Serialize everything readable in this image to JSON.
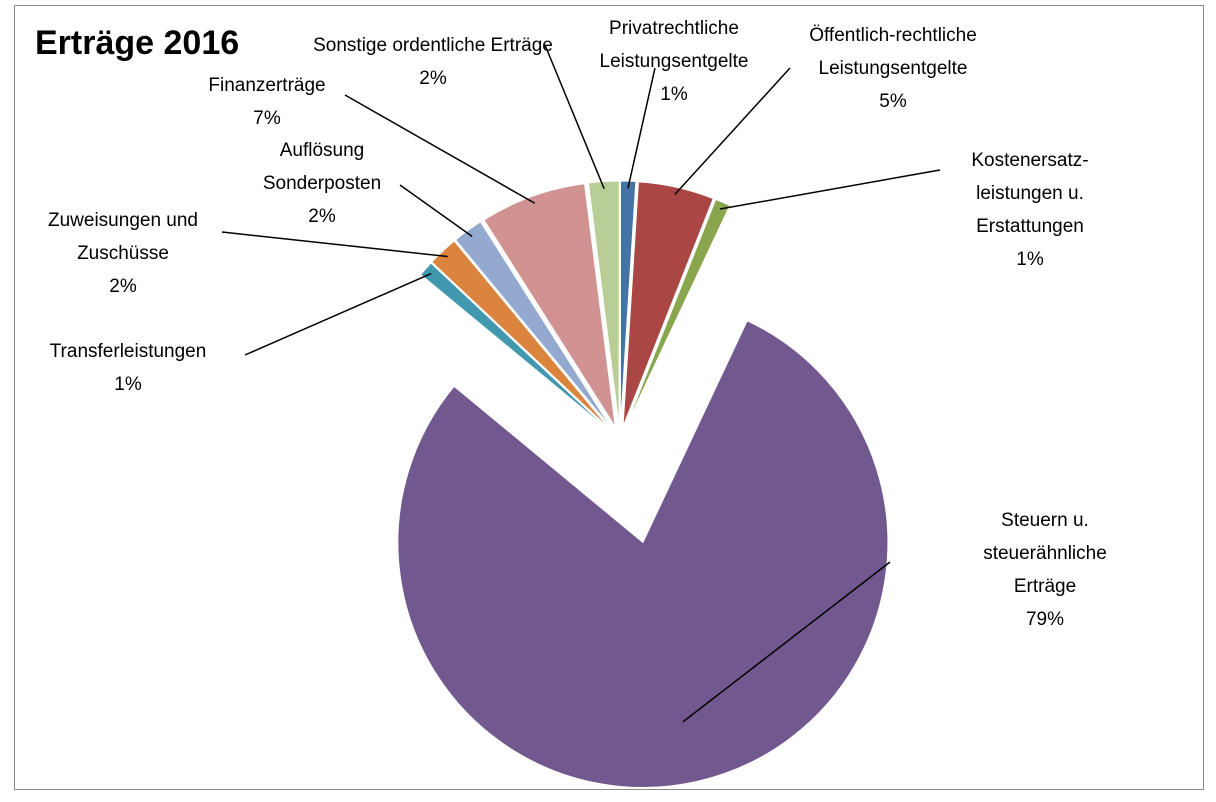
{
  "chart_data": {
    "type": "pie",
    "title": "Erträge 2016",
    "categories": [
      "Privatrechtliche Leistungsentgelte",
      "Öffentlich-rechtliche Leistungsentgelte",
      "Kostenersatz-leistungen u. Erstattungen",
      "Steuern u. steuerähnliche Erträge",
      "Transferleistungen",
      "Zuweisungen und Zuschüsse",
      "Auflösung Sonderposten",
      "Finanzerträge",
      "Sonstige ordentliche Erträge"
    ],
    "values": [
      1,
      5,
      1,
      79,
      1,
      2,
      2,
      7,
      2
    ],
    "value_labels": [
      "1%",
      "5%",
      "1%",
      "79%",
      "1%",
      "2%",
      "2%",
      "7%",
      "2%"
    ],
    "colors": [
      "#4572a7",
      "#aa4643",
      "#89a54e",
      "#71588f",
      "#4198af",
      "#db843d",
      "#93a9cf",
      "#d19392",
      "#b9cd96"
    ]
  }
}
